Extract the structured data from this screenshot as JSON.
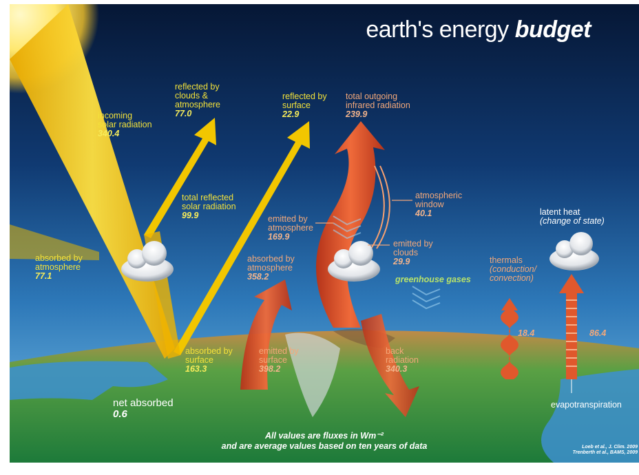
{
  "title": {
    "main": "earth's energy",
    "emph": "budget"
  },
  "labels": {
    "incoming": {
      "text": [
        "incoming",
        "solar radiation"
      ],
      "value": "340.4"
    },
    "reflected_clouds": {
      "text": [
        "reflected by",
        "clouds &",
        "atmosphere"
      ],
      "value": "77.0"
    },
    "reflected_surface": {
      "text": [
        "reflected by",
        "surface"
      ],
      "value": "22.9"
    },
    "total_outgoing": {
      "text": [
        "total outgoing",
        "infrared radiation"
      ],
      "value": "239.9"
    },
    "total_reflected": {
      "text": [
        "total reflected",
        "solar radiation"
      ],
      "value": "99.9"
    },
    "atm_window": {
      "text": [
        "atmospheric",
        "window"
      ],
      "value": "40.1"
    },
    "emitted_atm": {
      "text": [
        "emitted by",
        "atmosphere"
      ],
      "value": "169.9"
    },
    "emitted_clouds": {
      "text": [
        "emitted by",
        "clouds"
      ],
      "value": "29.9"
    },
    "latent_heat": {
      "text": [
        "latent heat"
      ],
      "note": "(change of state)"
    },
    "absorbed_atm_solar": {
      "text": [
        "absorbed by",
        "atmosphere"
      ],
      "value": "77.1"
    },
    "absorbed_atm_ir": {
      "text": [
        "absorbed by",
        "atmosphere"
      ],
      "value": "358.2"
    },
    "greenhouse": {
      "text": "greenhouse gases"
    },
    "thermals": {
      "text": [
        "thermals"
      ],
      "note": [
        "(conduction/",
        "convection)"
      ]
    },
    "thermals_value": "18.4",
    "latent_value": "86.4",
    "absorbed_surface": {
      "text": [
        "absorbed by",
        "surface"
      ],
      "value": "163.3"
    },
    "emitted_surface": {
      "text": [
        "emitted by",
        "surface"
      ],
      "value": "398.2"
    },
    "back_radiation": {
      "text": [
        "back",
        "radiation"
      ],
      "value": "340.3"
    },
    "evapotranspiration": "evapotranspiration",
    "net_absorbed": {
      "text": "net absorbed",
      "value": "0.6"
    }
  },
  "footnote": [
    "All values are fluxes in Wm⁻²",
    "and are average values based on ten years of data"
  ],
  "refs": [
    "Loeb et al., J. Clim. 2009",
    "Trenberth et al., BAMS, 2009"
  ],
  "colors": {
    "solar": "#f5c800",
    "infrared": "#e2512a",
    "sky_top": "#071a3d",
    "sky_bottom": "#5fb4e6",
    "land": "#2f9a44",
    "label_yellow": "#f3e23a",
    "label_orange": "#f3a87a"
  },
  "icons": [
    "sun-icon",
    "cloud-icon"
  ]
}
